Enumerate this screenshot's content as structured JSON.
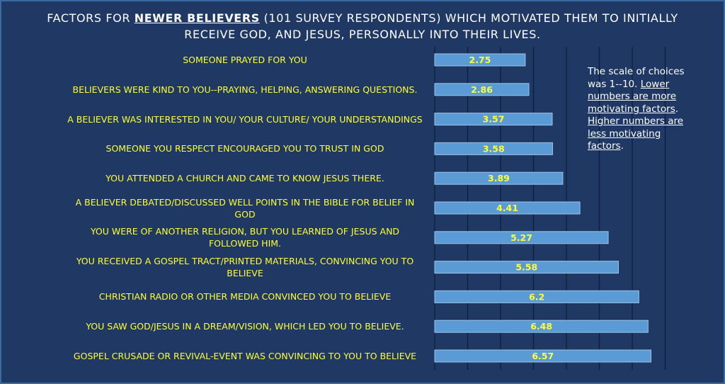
{
  "title": {
    "prefix": "FACTORS FOR ",
    "emphasis": "NEWER BELIEVERS",
    "suffix": " (101 SURVEY RESPONDENTS) WHICH MOTIVATED THEM TO INITIALLY RECEIVE GOD, AND JESUS, PERSONALLY INTO THEIR LIVES."
  },
  "note": {
    "part1": "The scale of choices was 1--10. ",
    "part2": "Lower numbers are more motivating factors",
    "part3": ". ",
    "part4": "Higher numbers are less motivating factors",
    "part5": "."
  },
  "colors": {
    "background": "#1f3864",
    "bar_fill": "#5b9bd5",
    "bar_stroke": "#9dc3e6",
    "category_text": "#ffff33",
    "value_text": "#ffff33",
    "gridline": "#0d1e3a"
  },
  "chart_data": {
    "type": "bar",
    "orientation": "horizontal",
    "categories": [
      "SOMEONE PRAYED FOR YOU",
      "BELIEVERS WERE KIND TO YOU--PRAYING, HELPING, ANSWERING QUESTIONS.",
      "A BELIEVER WAS INTERESTED IN YOU/ YOUR CULTURE/ YOUR UNDERSTANDINGS",
      "SOMEONE YOU RESPECT ENCOURAGED YOU TO TRUST IN GOD",
      "YOU ATTENDED A CHURCH AND CAME TO KNOW JESUS THERE.",
      "A BELIEVER DEBATED/DISCUSSED WELL POINTS IN THE BIBLE FOR BELIEF IN GOD",
      "YOU WERE OF ANOTHER RELIGION, BUT YOU LEARNED OF JESUS AND FOLLOWED HIM.",
      "YOU RECEIVED A GOSPEL TRACT/PRINTED MATERIALS, CONVINCING YOU TO BELIEVE",
      "CHRISTIAN RADIO OR OTHER MEDIA CONVINCED YOU TO BELIEVE",
      "YOU SAW GOD/JESUS IN A DREAM/VISION, WHICH LED YOU TO BELIEVE.",
      "GOSPEL CRUSADE OR REVIVAL-EVENT WAS CONVINCING TO YOU TO BELIEVE"
    ],
    "values": [
      2.75,
      2.86,
      3.57,
      3.58,
      3.89,
      4.41,
      5.27,
      5.58,
      6.2,
      6.48,
      6.57
    ],
    "data_labels": [
      "2.75",
      "2.86",
      "3.57",
      "3.58",
      "3.89",
      "4.41",
      "5.27",
      "5.58",
      "6.2",
      "6.48",
      "6.57"
    ],
    "xlim": [
      0,
      7
    ],
    "grid": true,
    "legend": "none"
  }
}
